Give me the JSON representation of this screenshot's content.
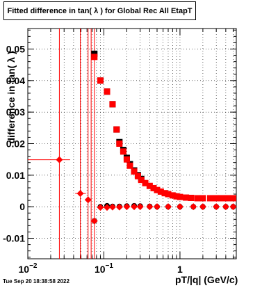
{
  "chart_data": {
    "type": "scatter",
    "title": "Fitted difference in tan( λ ) for Global Rec All EtapT",
    "xlabel": "pT/|q| (GeV/c)",
    "ylabel": "difference in tan( λ )",
    "xscale": "log",
    "xlim": [
      0.01,
      5.5
    ],
    "ylim": [
      -0.0165,
      0.0565
    ],
    "grid": true,
    "x_ticks": [
      {
        "value": 0.01,
        "base": "10",
        "exp": "−2"
      },
      {
        "value": 0.1,
        "base": "10",
        "exp": "−1"
      },
      {
        "value": 1,
        "base": "1",
        "exp": ""
      }
    ],
    "y_ticks": [
      {
        "value": -0.01,
        "label": "-0.01"
      },
      {
        "value": 0,
        "label": "0"
      },
      {
        "value": 0.01,
        "label": "0.01"
      },
      {
        "value": 0.02,
        "label": "0.02"
      },
      {
        "value": 0.03,
        "label": "0.03"
      },
      {
        "value": 0.04,
        "label": "0.04"
      },
      {
        "value": 0.05,
        "label": "0.05"
      }
    ],
    "series": [
      {
        "marker": "square",
        "color": "#000000",
        "x": [
          0.075,
          0.09,
          0.11,
          0.13,
          0.147,
          0.16,
          0.18,
          0.2,
          0.22,
          0.25,
          0.28,
          0.31
        ],
        "y": [
          0.0485,
          0.04,
          0.0365,
          0.0325,
          0.0245,
          0.0205,
          0.018,
          0.0155,
          0.0135,
          0.0115,
          0.01,
          0.0088
        ]
      },
      {
        "marker": "square",
        "color": "#ff0000",
        "x": [
          0.075,
          0.09,
          0.11,
          0.13,
          0.147,
          0.16,
          0.18,
          0.2,
          0.22,
          0.25,
          0.28,
          0.31,
          0.35,
          0.4,
          0.45,
          0.5,
          0.56,
          0.63,
          0.7,
          0.8,
          0.9,
          1.0,
          1.2,
          1.4,
          1.7,
          2.0,
          2.5,
          3.0,
          3.5,
          4.2,
          5.0
        ],
        "y": [
          0.0475,
          0.04,
          0.0365,
          0.0325,
          0.0245,
          0.02,
          0.0175,
          0.015,
          0.013,
          0.0112,
          0.0097,
          0.0085,
          0.0075,
          0.0066,
          0.0059,
          0.0053,
          0.0048,
          0.0043,
          0.004,
          0.0036,
          0.0033,
          0.0031,
          0.0029,
          0.0028,
          0.0027,
          0.0027,
          0.0027,
          0.0027,
          0.0027,
          0.0027,
          0.0027
        ]
      },
      {
        "marker": "circle",
        "color": "#000000",
        "x": [
          0.075,
          0.09,
          0.11,
          0.13,
          0.16,
          0.2,
          0.25,
          0.3,
          0.4,
          0.5,
          0.7,
          1.0,
          1.5,
          2.0,
          3.0,
          4.0,
          5.0
        ],
        "y": [
          -0.0045,
          0.0,
          0.0003,
          0.0001,
          0.0001,
          0.0002,
          0.0003,
          0.0002,
          0.0001,
          0.0,
          0.0,
          0.0,
          0.0,
          0.0,
          0.0,
          0.0,
          0.0
        ]
      },
      {
        "marker": "diamond",
        "color": "#ff0000",
        "x": [
          0.026,
          0.049,
          0.062,
          0.075,
          0.09,
          0.11,
          0.13,
          0.16,
          0.2,
          0.25,
          0.3,
          0.4,
          0.5,
          0.7,
          1.0,
          1.5,
          2.0,
          3.0,
          4.0,
          5.0
        ],
        "y": [
          0.0149,
          0.0042,
          0.0022,
          -0.0045,
          -0.0002,
          -0.0002,
          -0.0001,
          -0.0001,
          0.0,
          0.0,
          0.0,
          0.0,
          0.0,
          0.0,
          0.0,
          0.0,
          0.0,
          0.0,
          0.0,
          0.0
        ],
        "error_x": [
          {
            "lo": 0.01,
            "hi": 0.036
          },
          {
            "lo": 0.042,
            "hi": 0.058
          },
          {
            "lo": 0.058,
            "hi": 0.069
          }
        ],
        "error_x_points": [
          0,
          1,
          2
        ]
      }
    ],
    "vertical_error_lines": [
      0.026,
      0.049,
      0.062,
      0.068,
      0.075
    ]
  },
  "timestamp": "Tue Sep 20 18:38:58 2022"
}
